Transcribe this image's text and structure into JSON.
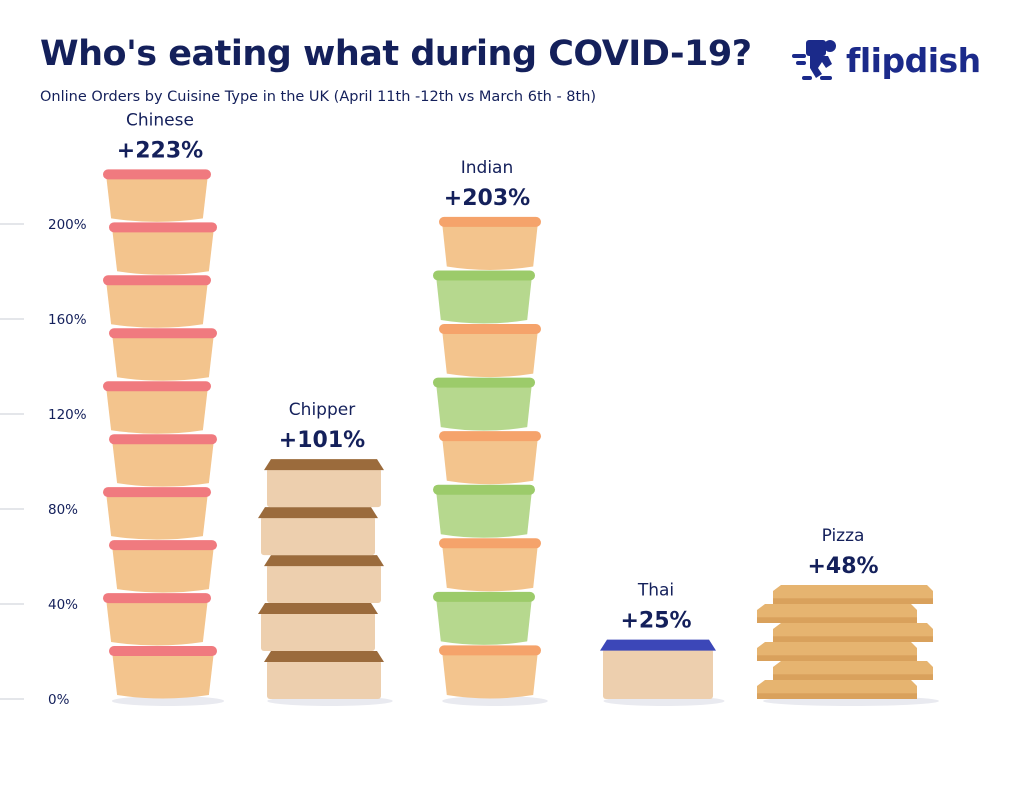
{
  "header": {
    "title": "Who's eating what during COVID-19?",
    "subtitle": "Online Orders by Cuisine Type in the UK (April 11th -12th vs March 6th - 8th)"
  },
  "brand": {
    "name": "flipdish",
    "logo_icon": "delivery-rider-icon",
    "color": "#1b2a8a"
  },
  "chart_data": {
    "type": "bar",
    "title": "Who's eating what during COVID-19?",
    "subtitle": "Online Orders by Cuisine Type in the UK (April 11th -12th vs March 6th - 8th)",
    "xlabel": "",
    "ylabel": "",
    "ylim": [
      0,
      223
    ],
    "yticks": [
      0,
      40,
      80,
      120,
      160,
      200
    ],
    "ytick_labels": [
      "0%",
      "40%",
      "80%",
      "120%",
      "160%",
      "200%"
    ],
    "grid": false,
    "categories": [
      "Chinese",
      "Chipper",
      "Indian",
      "Thai",
      "Pizza"
    ],
    "values": [
      223,
      101,
      203,
      25,
      48
    ],
    "value_labels": [
      "+223%",
      "+101%",
      "+203%",
      "+25%",
      "+48%"
    ],
    "mark_styles": [
      {
        "kind": "tub",
        "body": "#f3c48d",
        "lid": "#f07a7f",
        "alt_body": "#f3c48d",
        "alt_lid": "#f07a7f"
      },
      {
        "kind": "box",
        "body": "#edcfae",
        "lid": "#9b6b3c"
      },
      {
        "kind": "tub",
        "body": "#f3c48d",
        "lid": "#f5a36b",
        "alt_body": "#b6d88e",
        "alt_lid": "#9ccb6a"
      },
      {
        "kind": "box",
        "body": "#edcfae",
        "lid": "#3c47b8"
      },
      {
        "kind": "pizza",
        "body": "#e6b470",
        "lid": "#d9a15c"
      }
    ]
  }
}
